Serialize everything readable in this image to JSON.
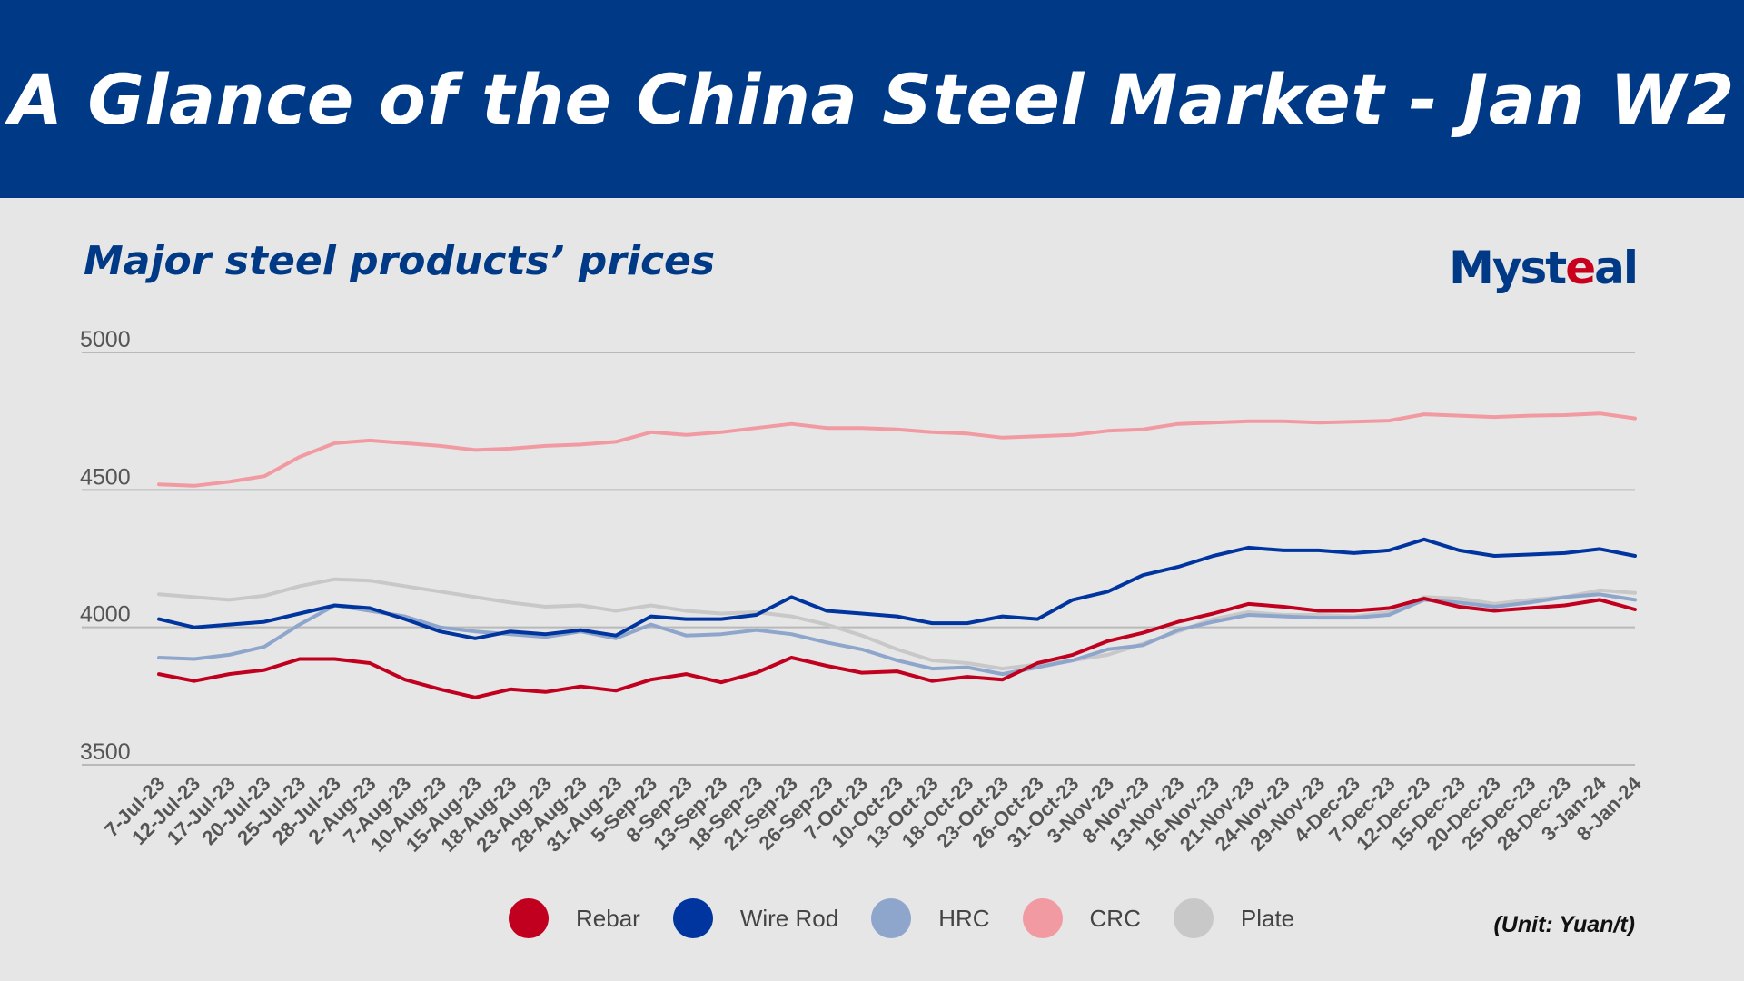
{
  "header": {
    "title": "A Glance of the China Steel Market - Jan W2"
  },
  "subtitle": "Major steel products’ prices",
  "logo": {
    "text_main": "Myst",
    "text_accent": "e",
    "text_tail": "al"
  },
  "unit_note": "(Unit: Yuan/t)",
  "colors": {
    "header_bg": "#003a87",
    "background": "#e6e6e6",
    "Rebar": "#c0001e",
    "Wire Rod": "#0035a0",
    "HRC": "#8fa6cc",
    "CRC": "#f29aa2",
    "Plate": "#c8c8c8"
  },
  "chart_data": {
    "type": "line",
    "title": "Major steel products’ prices",
    "ylim": [
      3500,
      5000
    ],
    "yticks": [
      3500,
      4000,
      4500,
      5000
    ],
    "grid": true,
    "legend_position": "bottom",
    "x": [
      "7-Jul-23",
      "12-Jul-23",
      "17-Jul-23",
      "20-Jul-23",
      "25-Jul-23",
      "28-Jul-23",
      "2-Aug-23",
      "7-Aug-23",
      "10-Aug-23",
      "15-Aug-23",
      "18-Aug-23",
      "23-Aug-23",
      "28-Aug-23",
      "31-Aug-23",
      "5-Sep-23",
      "8-Sep-23",
      "13-Sep-23",
      "18-Sep-23",
      "21-Sep-23",
      "26-Sep-23",
      "7-Oct-23",
      "10-Oct-23",
      "13-Oct-23",
      "18-Oct-23",
      "23-Oct-23",
      "26-Oct-23",
      "31-Oct-23",
      "3-Nov-23",
      "8-Nov-23",
      "13-Nov-23",
      "16-Nov-23",
      "21-Nov-23",
      "24-Nov-23",
      "29-Nov-23",
      "4-Dec-23",
      "7-Dec-23",
      "12-Dec-23",
      "15-Dec-23",
      "20-Dec-23",
      "25-Dec-23",
      "28-Dec-23",
      "3-Jan-24",
      "8-Jan-24"
    ],
    "series": [
      {
        "name": "Rebar",
        "values": [
          3830,
          3805,
          3830,
          3845,
          3885,
          3885,
          3870,
          3810,
          3775,
          3745,
          3775,
          3765,
          3785,
          3770,
          3810,
          3830,
          3800,
          3835,
          3890,
          3860,
          3835,
          3840,
          3805,
          3820,
          3810,
          3870,
          3900,
          3950,
          3980,
          4020,
          4050,
          4085,
          4075,
          4060,
          4060,
          4070,
          4105,
          4075,
          4060,
          4070,
          4080,
          4100,
          4065
        ]
      },
      {
        "name": "Wire Rod",
        "values": [
          4030,
          4000,
          4010,
          4020,
          4050,
          4080,
          4070,
          4030,
          3985,
          3960,
          3985,
          3975,
          3990,
          3970,
          4040,
          4030,
          4030,
          4045,
          4110,
          4060,
          4050,
          4040,
          4015,
          4015,
          4040,
          4030,
          4100,
          4130,
          4190,
          4220,
          4260,
          4290,
          4280,
          4280,
          4270,
          4280,
          4320,
          4280,
          4260,
          4265,
          4270,
          4285,
          4260
        ]
      },
      {
        "name": "HRC",
        "values": [
          3890,
          3885,
          3900,
          3930,
          4010,
          4080,
          4060,
          4040,
          4000,
          3985,
          3975,
          3965,
          3985,
          3960,
          4010,
          3970,
          3975,
          3990,
          3975,
          3945,
          3920,
          3880,
          3850,
          3855,
          3830,
          3855,
          3880,
          3920,
          3935,
          3990,
          4020,
          4045,
          4040,
          4035,
          4035,
          4045,
          4100,
          4090,
          4075,
          4090,
          4110,
          4120,
          4100
        ]
      },
      {
        "name": "CRC",
        "values": [
          4520,
          4515,
          4530,
          4550,
          4620,
          4670,
          4680,
          4670,
          4660,
          4645,
          4650,
          4660,
          4665,
          4675,
          4710,
          4700,
          4710,
          4725,
          4740,
          4725,
          4725,
          4720,
          4710,
          4705,
          4690,
          4695,
          4700,
          4715,
          4720,
          4740,
          4745,
          4750,
          4750,
          4745,
          4748,
          4752,
          4775,
          4770,
          4765,
          4770,
          4772,
          4778,
          4760
        ]
      },
      {
        "name": "Plate",
        "values": [
          4120,
          4110,
          4100,
          4115,
          4150,
          4175,
          4170,
          4150,
          4130,
          4110,
          4090,
          4075,
          4080,
          4060,
          4080,
          4060,
          4050,
          4055,
          4040,
          4010,
          3970,
          3920,
          3880,
          3870,
          3850,
          3865,
          3880,
          3900,
          3940,
          3985,
          4030,
          4055,
          4045,
          4045,
          4040,
          4055,
          4110,
          4105,
          4085,
          4100,
          4110,
          4135,
          4125
        ]
      }
    ]
  }
}
